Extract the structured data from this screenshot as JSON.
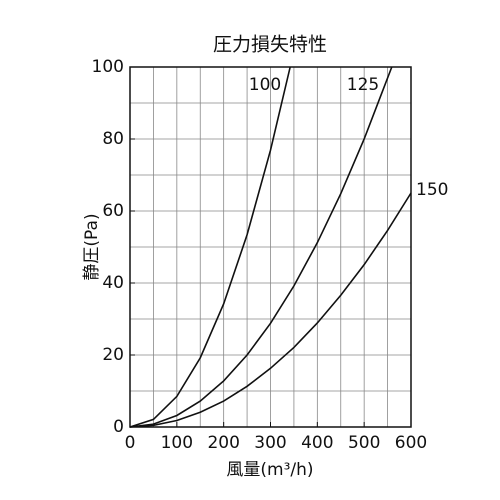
{
  "chart_data": {
    "type": "line",
    "title": "圧力損失特性",
    "xlabel": "風量(m³/h)",
    "ylabel": "静圧(Pa)",
    "xlim": [
      0,
      600
    ],
    "ylim": [
      0,
      100
    ],
    "xticks": [
      0,
      100,
      200,
      300,
      400,
      500,
      600
    ],
    "yticks": [
      0,
      20,
      40,
      60,
      80,
      100
    ],
    "grid": true,
    "xgrid": [
      50,
      100,
      150,
      200,
      250,
      300,
      350,
      400,
      450,
      500,
      550
    ],
    "ygrid": [
      10,
      20,
      30,
      40,
      50,
      60,
      70,
      80,
      90
    ],
    "series": [
      {
        "name": "100",
        "color": "#111111",
        "x": [
          0,
          50,
          100,
          150,
          200,
          250,
          300,
          342
        ],
        "values": [
          0,
          2.1,
          8.5,
          19.2,
          34.2,
          53.4,
          76.9,
          100
        ]
      },
      {
        "name": "125",
        "color": "#111111",
        "x": [
          0,
          50,
          100,
          150,
          200,
          250,
          300,
          350,
          400,
          450,
          500,
          559
        ],
        "values": [
          0,
          0.8,
          3.2,
          7.2,
          12.8,
          20,
          28.8,
          39.2,
          51.2,
          64.8,
          80,
          100
        ]
      },
      {
        "name": "150",
        "color": "#111111",
        "x": [
          0,
          50,
          100,
          150,
          200,
          250,
          300,
          350,
          400,
          450,
          500,
          550,
          600
        ],
        "values": [
          0,
          0.45,
          1.8,
          4.1,
          7.2,
          11.3,
          16.3,
          22.1,
          28.9,
          36.6,
          45.1,
          54.6,
          65
        ]
      }
    ]
  }
}
